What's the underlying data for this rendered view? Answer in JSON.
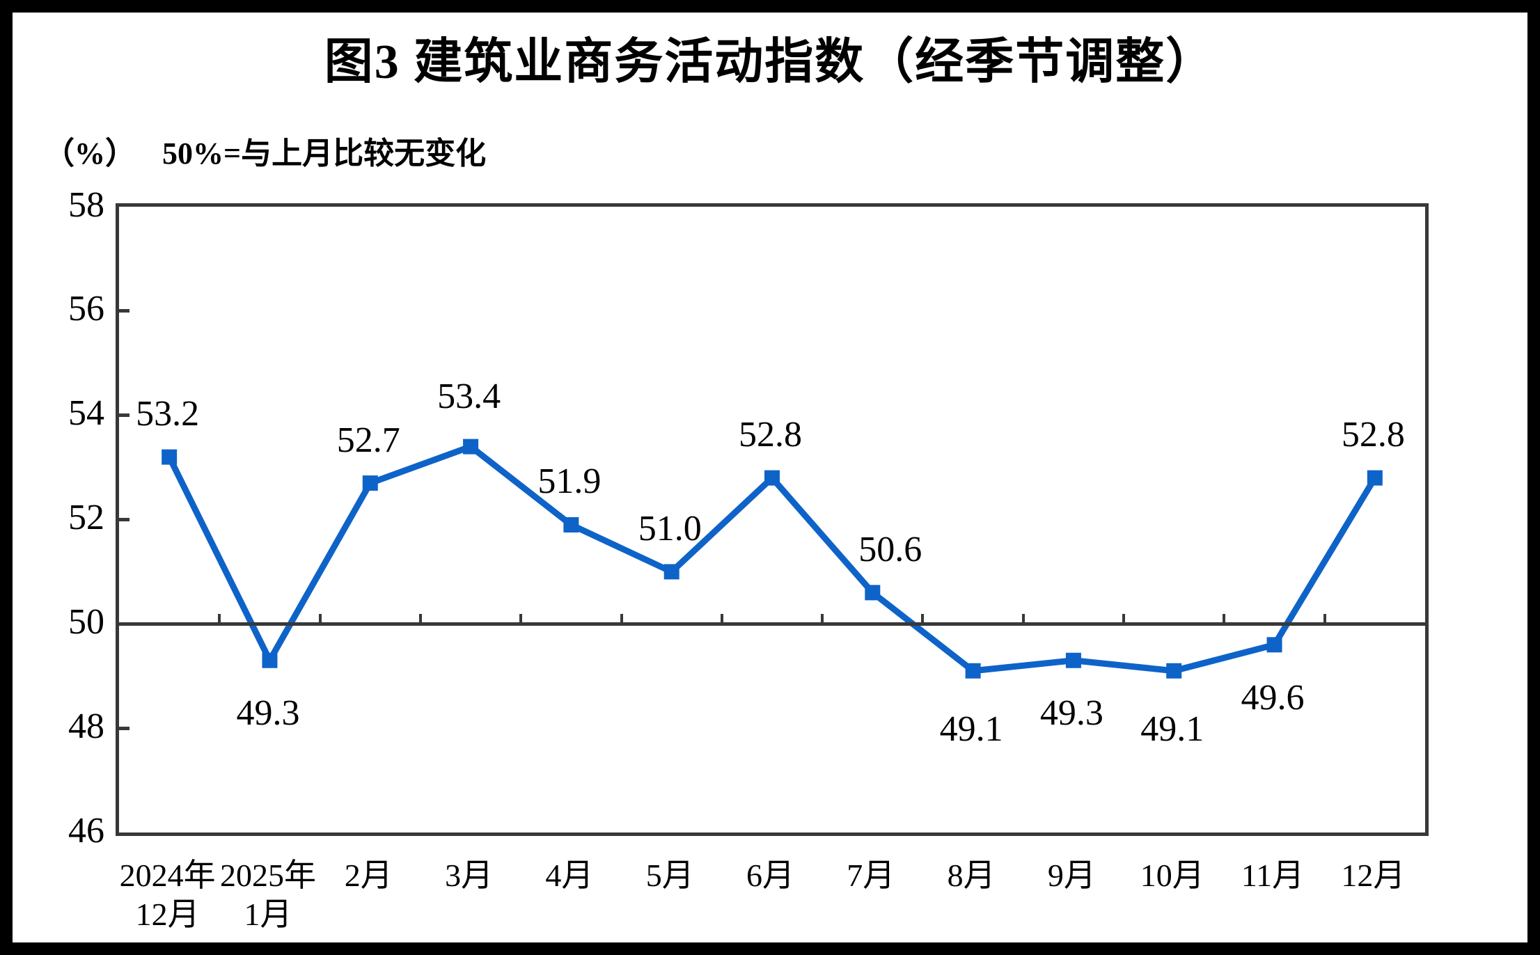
{
  "title": "图3  建筑业商务活动指数（经季节调整）",
  "axis": {
    "unit_label": "（%）",
    "reference_note": "50%=与上月比较无变化"
  },
  "colors": {
    "line": "#0E63C8",
    "axis": "#383838",
    "text": "#000000",
    "frame": "#000000",
    "background": "#FFFFFF"
  },
  "chart_data": {
    "type": "line",
    "title": "图3  建筑业商务活动指数（经季节调整）",
    "ylabel": "（%）",
    "categories": [
      "2024年12月",
      "2025年1月",
      "2月",
      "3月",
      "4月",
      "5月",
      "6月",
      "7月",
      "8月",
      "9月",
      "10月",
      "11月",
      "12月"
    ],
    "category_label_lines": [
      [
        "2024年",
        "12月"
      ],
      [
        "2025年",
        "1月"
      ],
      [
        "2月"
      ],
      [
        "3月"
      ],
      [
        "4月"
      ],
      [
        "5月"
      ],
      [
        "6月"
      ],
      [
        "7月"
      ],
      [
        "8月"
      ],
      [
        "9月"
      ],
      [
        "10月"
      ],
      [
        "11月"
      ],
      [
        "12月"
      ]
    ],
    "values": [
      53.2,
      49.3,
      52.7,
      53.4,
      51.9,
      51.0,
      52.8,
      50.6,
      49.1,
      49.3,
      49.1,
      49.6,
      52.8
    ],
    "value_decimals": 1,
    "label_positions": [
      "above",
      "below",
      "above",
      "above",
      "above",
      "above",
      "above",
      "above",
      "below",
      "below",
      "below",
      "below",
      "above"
    ],
    "ylim": [
      46,
      58
    ],
    "yticks": [
      46,
      48,
      50,
      52,
      54,
      56,
      58
    ],
    "reference_line": 50,
    "marker": "square",
    "grid": false,
    "legend_position": "none"
  }
}
